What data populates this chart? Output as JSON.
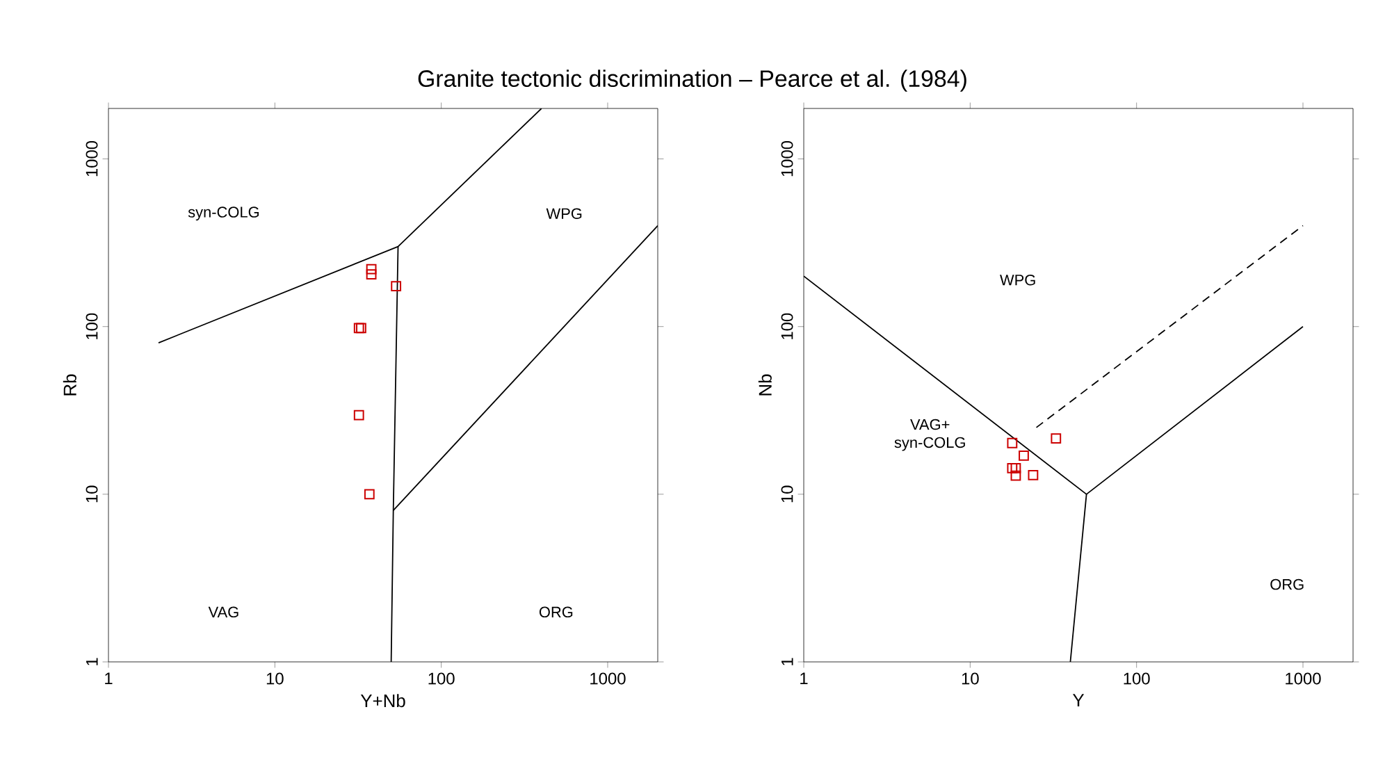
{
  "chart_data": [
    {
      "type": "scatter",
      "title": "Granite tectonic discrimination – Pearce et al. (1984)",
      "xlabel": "Y+Nb",
      "ylabel": "Rb",
      "log": "xy",
      "xlim": [
        1,
        2000
      ],
      "ylim": [
        1,
        2000
      ],
      "xticks": [
        1,
        10,
        100,
        1000
      ],
      "yticks": [
        1,
        10,
        100,
        1000
      ],
      "series": [
        {
          "marker": "square",
          "color": "#cc0000",
          "x": [
            38,
            38,
            53.5,
            33,
            32,
            32,
            37
          ],
          "values": [
            220,
            205,
            174,
            98,
            98,
            29.6,
            10
          ]
        },
        {
          "type": "line",
          "line_style": "solid",
          "color": "#000000",
          "x": [
            2,
            55,
            400
          ],
          "values": [
            80,
            300,
            2000
          ]
        },
        {
          "type": "line",
          "line_style": "solid",
          "color": "#000000",
          "x": [
            55,
            51.5,
            50
          ],
          "values": [
            300,
            8,
            1
          ]
        },
        {
          "type": "line",
          "line_style": "solid",
          "color": "#000000",
          "x": [
            51.5,
            2000
          ],
          "values": [
            8,
            400
          ]
        }
      ],
      "annotations": [
        "syn-COLG",
        "WPG",
        "VAG",
        "ORG"
      ]
    },
    {
      "type": "scatter",
      "xlabel": "Y",
      "ylabel": "Nb",
      "log": "xy",
      "xlim": [
        1,
        2000
      ],
      "ylim": [
        1,
        2000
      ],
      "xticks": [
        1,
        10,
        100,
        1000
      ],
      "yticks": [
        1,
        10,
        100,
        1000
      ],
      "series": [
        {
          "marker": "square",
          "color": "#cc0000",
          "x": [
            17.9,
            21,
            32.8,
            17.9,
            18.8,
            18.8,
            23.9
          ],
          "values": [
            20.2,
            17,
            21.5,
            14.3,
            14.3,
            12.9,
            13
          ]
        },
        {
          "type": "line",
          "line_style": "solid",
          "color": "#000000",
          "x": [
            1,
            50,
            1000
          ],
          "values": [
            200,
            10,
            100
          ]
        },
        {
          "type": "line",
          "line_style": "solid",
          "color": "#000000",
          "x": [
            50,
            40
          ],
          "values": [
            10,
            1
          ]
        },
        {
          "type": "line",
          "line_style": "dashed",
          "color": "#000000",
          "x": [
            25,
            1000
          ],
          "values": [
            25,
            400
          ]
        }
      ],
      "annotations": [
        "WPG",
        "VAG+ syn-COLG",
        "ORG"
      ]
    }
  ]
}
